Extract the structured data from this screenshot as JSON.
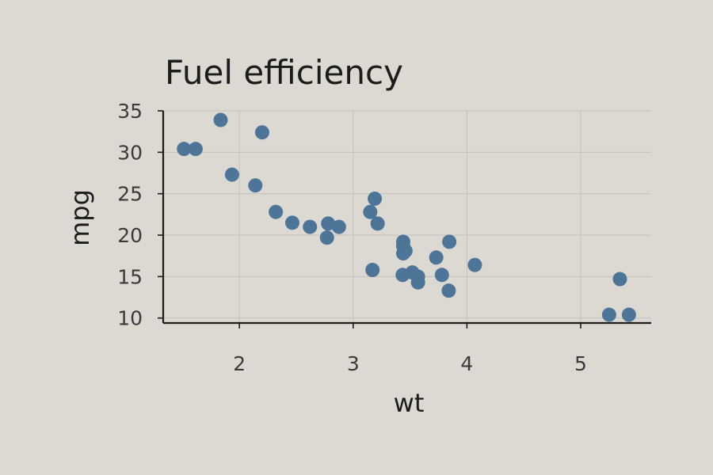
{
  "colors": {
    "background": "#dcd8d2",
    "point": "#4d7598",
    "grid": "#c4c0ba",
    "axis": "#1c1c1c"
  },
  "chart_data": {
    "type": "scatter",
    "title": "Fuel efficiency",
    "xlabel": "wt",
    "ylabel": "mpg",
    "xlim": [
      1.33,
      5.62
    ],
    "ylim": [
      9.4,
      35.0
    ],
    "xticks": [
      2,
      3,
      4,
      5
    ],
    "yticks": [
      10,
      15,
      20,
      25,
      30,
      35
    ],
    "grid": true,
    "series": [
      {
        "x": [
          2.62,
          2.875,
          2.32,
          3.215,
          3.44,
          3.46,
          3.57,
          3.19,
          3.15,
          3.44,
          3.44,
          4.07,
          3.73,
          3.78,
          5.25,
          5.424,
          5.345,
          2.2,
          1.615,
          1.835,
          2.465,
          3.52,
          3.435,
          3.84,
          3.845,
          1.935,
          2.14,
          1.513,
          3.17,
          2.77,
          3.57,
          2.78
        ],
        "y": [
          21.0,
          21.0,
          22.8,
          21.4,
          18.7,
          18.1,
          14.3,
          24.4,
          22.8,
          19.2,
          17.8,
          16.4,
          17.3,
          15.2,
          10.4,
          10.4,
          14.7,
          32.4,
          30.4,
          33.9,
          21.5,
          15.5,
          15.2,
          13.3,
          19.2,
          27.3,
          26.0,
          30.4,
          15.8,
          19.7,
          15.0,
          21.4
        ]
      }
    ]
  }
}
